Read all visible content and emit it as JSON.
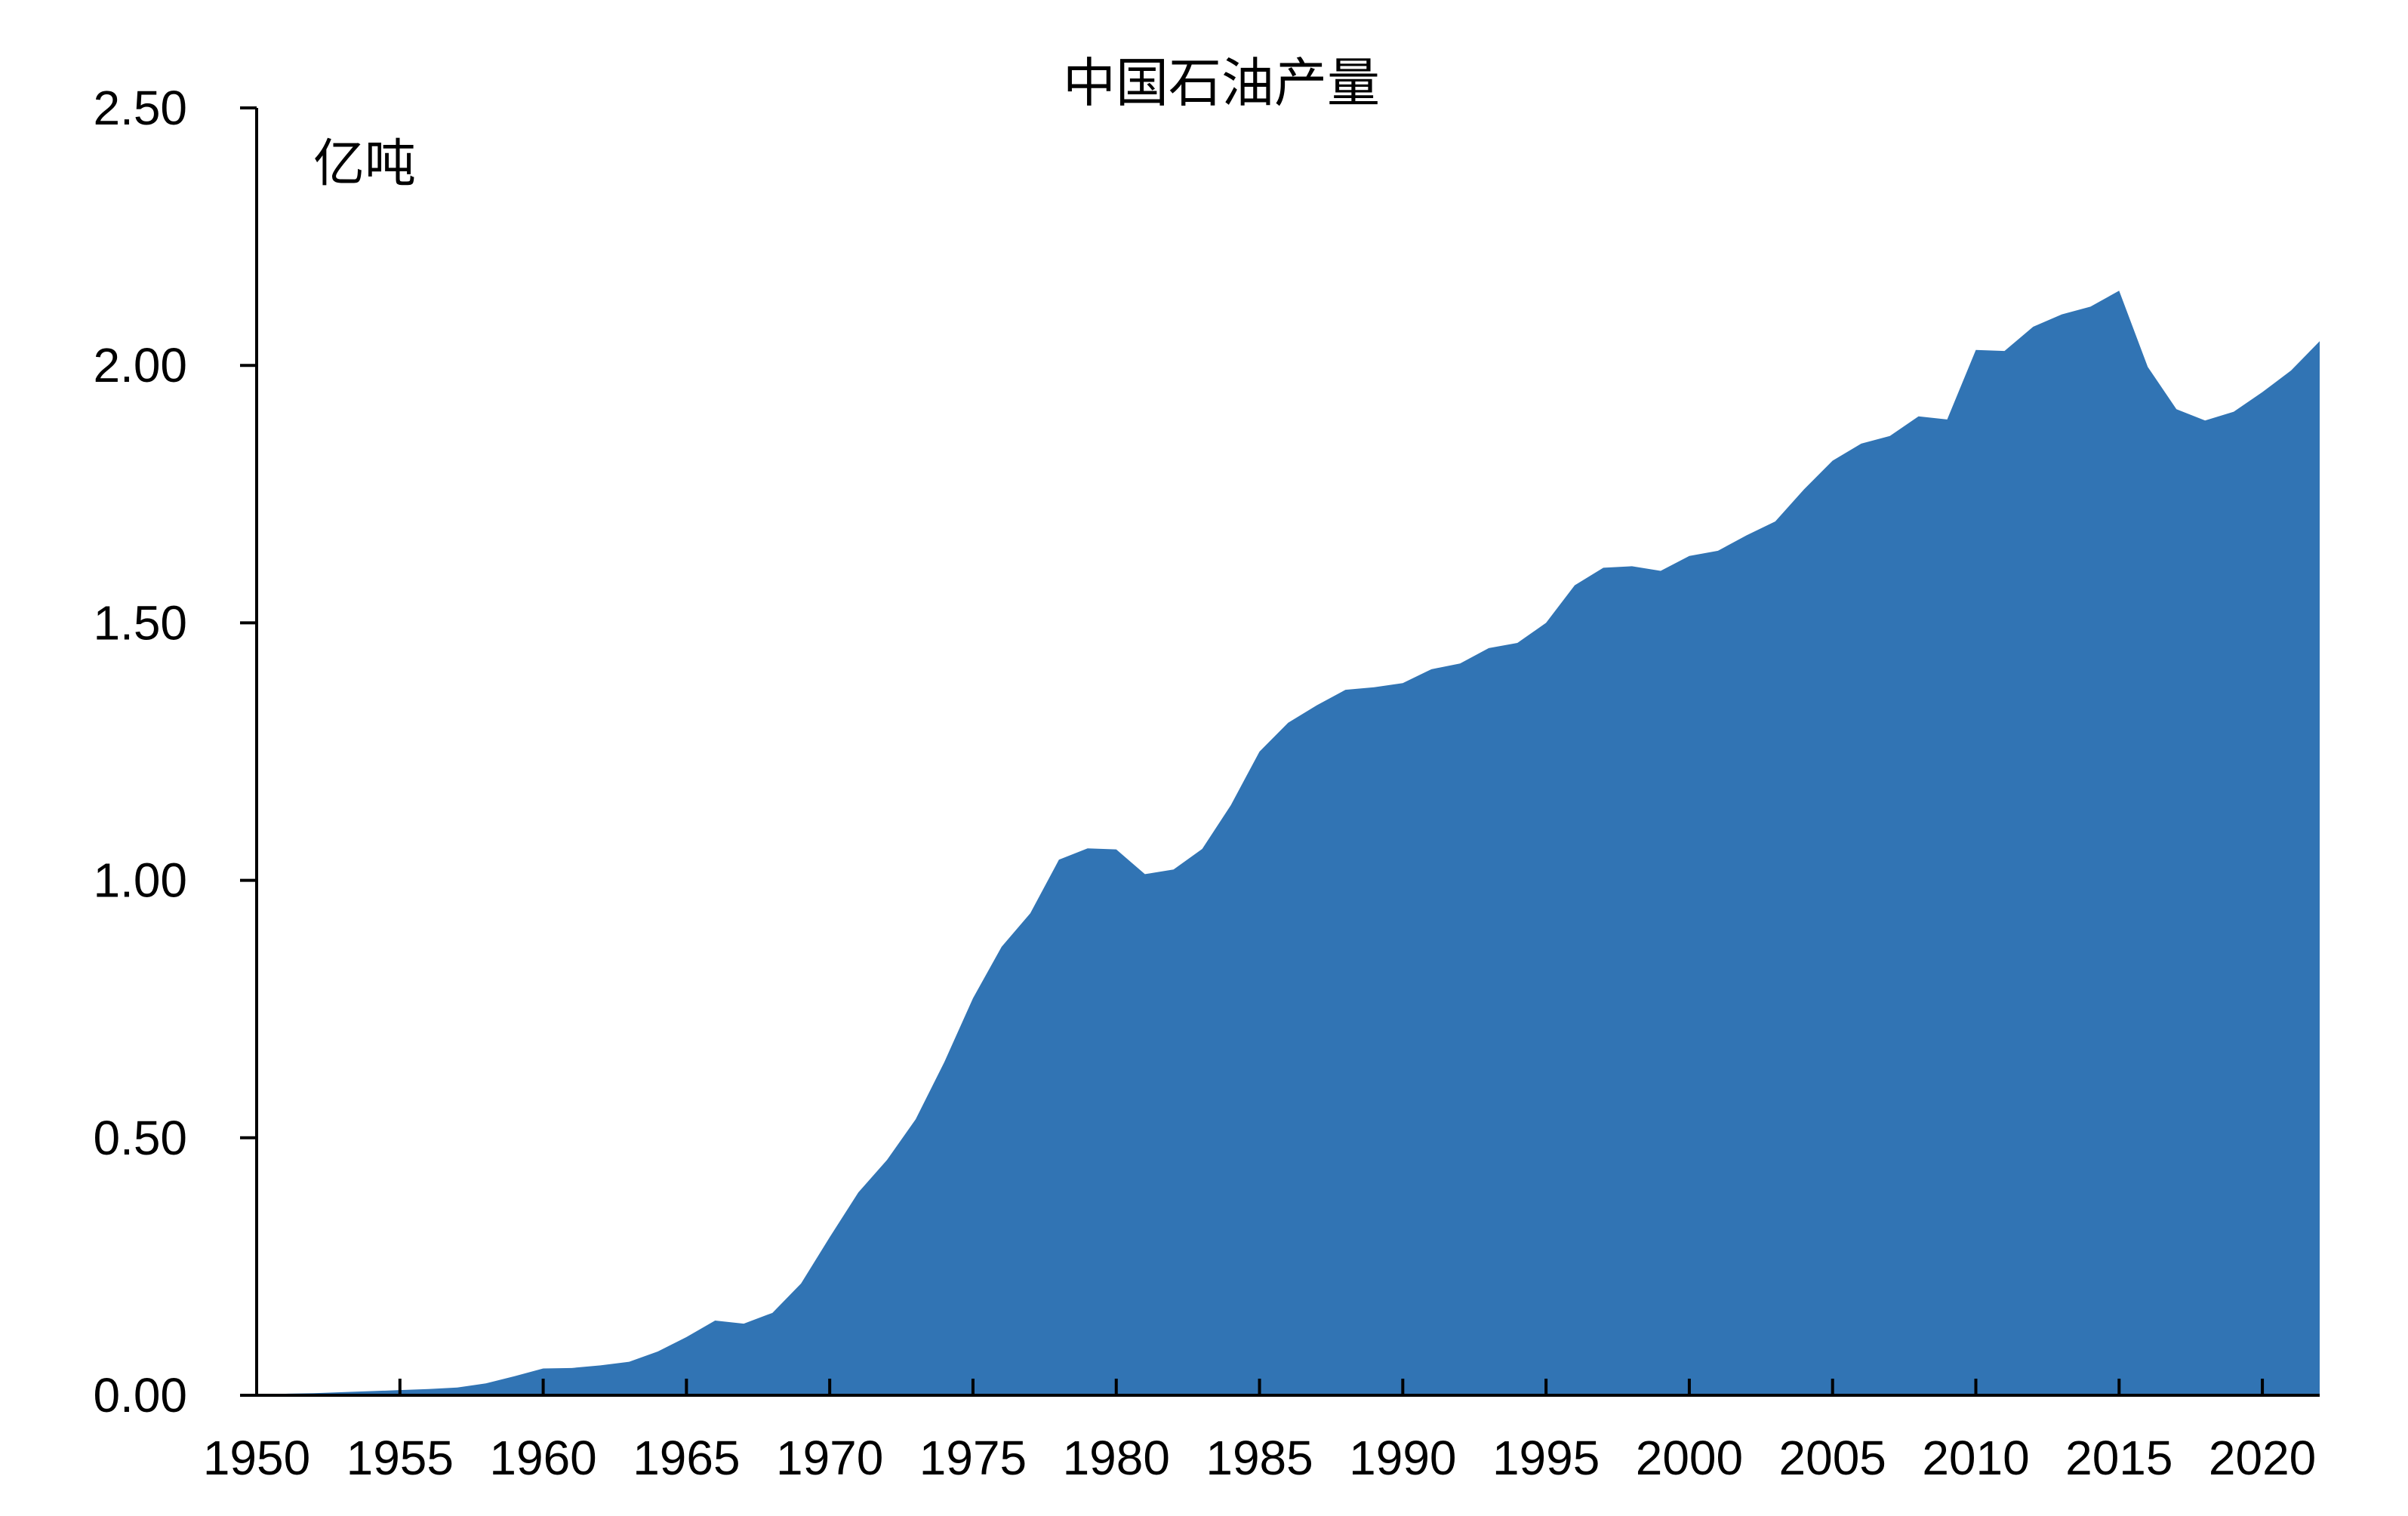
{
  "chart_data": {
    "type": "area",
    "title": "中国石油产量",
    "unit_label": "亿吨",
    "xlabel": "",
    "ylabel": "",
    "xlim": [
      1950,
      2022
    ],
    "ylim": [
      0,
      2.5
    ],
    "y_ticks": [
      0,
      0.5,
      1.0,
      1.5,
      2.0,
      2.5
    ],
    "y_tick_labels": [
      "0.00",
      "0.50",
      "1.00",
      "1.50",
      "2.00",
      "2.50"
    ],
    "x_ticks": [
      1950,
      1955,
      1960,
      1965,
      1970,
      1975,
      1980,
      1985,
      1990,
      1995,
      2000,
      2005,
      2010,
      2015,
      2020
    ],
    "x_tick_labels": [
      "1950",
      "1955",
      "1960",
      "1965",
      "1970",
      "1975",
      "1980",
      "1985",
      "1990",
      "1995",
      "2000",
      "2005",
      "2010",
      "2015",
      "2020"
    ],
    "grid": false,
    "legend": "none",
    "fill_color": "#3174b4",
    "x": [
      1950,
      1951,
      1952,
      1953,
      1954,
      1955,
      1956,
      1957,
      1958,
      1959,
      1960,
      1961,
      1962,
      1963,
      1964,
      1965,
      1966,
      1967,
      1968,
      1969,
      1970,
      1971,
      1972,
      1973,
      1974,
      1975,
      1976,
      1977,
      1978,
      1979,
      1980,
      1981,
      1982,
      1983,
      1984,
      1985,
      1986,
      1987,
      1988,
      1989,
      1990,
      1991,
      1992,
      1993,
      1994,
      1995,
      1996,
      1997,
      1998,
      1999,
      2000,
      2001,
      2002,
      2003,
      2004,
      2005,
      2006,
      2007,
      2008,
      2009,
      2010,
      2011,
      2012,
      2013,
      2014,
      2015,
      2016,
      2017,
      2018,
      2019,
      2020,
      2021,
      2022
    ],
    "values": [
      0.002,
      0.003,
      0.004,
      0.006,
      0.008,
      0.01,
      0.012,
      0.015,
      0.023,
      0.037,
      0.052,
      0.053,
      0.058,
      0.065,
      0.085,
      0.113,
      0.145,
      0.139,
      0.16,
      0.217,
      0.307,
      0.394,
      0.457,
      0.536,
      0.647,
      0.771,
      0.871,
      0.936,
      1.04,
      1.062,
      1.06,
      1.012,
      1.021,
      1.061,
      1.146,
      1.25,
      1.306,
      1.34,
      1.37,
      1.375,
      1.383,
      1.41,
      1.421,
      1.451,
      1.461,
      1.5,
      1.573,
      1.607,
      1.61,
      1.601,
      1.63,
      1.64,
      1.67,
      1.697,
      1.759,
      1.815,
      1.848,
      1.863,
      1.901,
      1.895,
      2.03,
      2.028,
      2.075,
      2.099,
      2.114,
      2.145,
      1.997,
      1.915,
      1.893,
      1.91,
      1.948,
      1.99,
      2.047
    ]
  }
}
